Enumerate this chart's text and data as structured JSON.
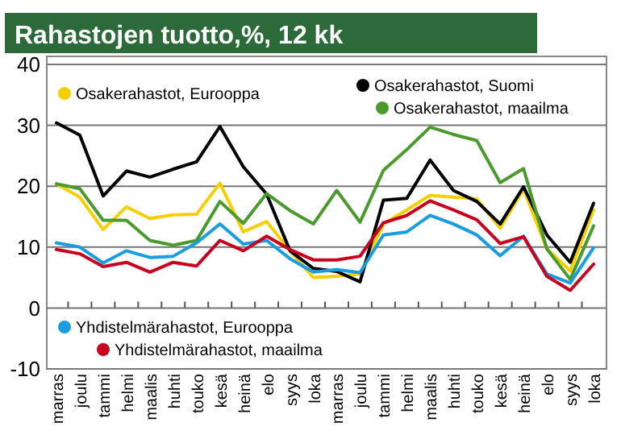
{
  "chart_data": {
    "type": "line",
    "title": "Rahastojen tuotto,%, 12 kk",
    "categories": [
      "marras",
      "joulu",
      "tammi",
      "helmi",
      "maalis",
      "huhti",
      "touko",
      "kesä",
      "heinä",
      "elo",
      "syys",
      "loka",
      "marras",
      "joulu",
      "tammi",
      "helmi",
      "maalis",
      "huhti",
      "touko",
      "kesä",
      "heinä",
      "elo",
      "syys",
      "loka"
    ],
    "series": [
      {
        "name": "Osakerahastot, Eurooppa",
        "color": "#f5cf00",
        "values": [
          20.4,
          18.2,
          12.9,
          16.6,
          14.7,
          15.3,
          15.4,
          20.5,
          12.5,
          14.2,
          9.4,
          5,
          5.2,
          5.6,
          13.8,
          16.1,
          18.5,
          18.2,
          17.9,
          13.1,
          19.5,
          9.7,
          6.1,
          16.1
        ]
      },
      {
        "name": "Osakerahastot, Suomi",
        "color": "#000000",
        "values": [
          30.4,
          28.4,
          18.4,
          22.5,
          21.5,
          22.8,
          24,
          29.8,
          23.2,
          18.7,
          9.4,
          6.5,
          6,
          4.3,
          17.7,
          18,
          24.3,
          19.3,
          17.5,
          13.8,
          19.9,
          12,
          7.5,
          17.2
        ]
      },
      {
        "name": "Osakerahastot, maailma",
        "color": "#4a9a2e",
        "values": [
          20.4,
          19.6,
          14.4,
          14.4,
          11.1,
          10.3,
          11.1,
          17.5,
          13.9,
          18.8,
          16,
          13.8,
          19.3,
          14.1,
          22.6,
          26,
          29.7,
          28.5,
          27.5,
          20.6,
          22.9,
          9.7,
          4.7,
          13.5
        ]
      },
      {
        "name": "Yhdistelmärahastot, Eurooppa",
        "color": "#1a9de0",
        "values": [
          10.7,
          10,
          7.4,
          9.4,
          8.3,
          8.5,
          10.7,
          13.8,
          10.5,
          11.1,
          8.1,
          5.9,
          6.3,
          5.8,
          12,
          12.5,
          15.2,
          13.8,
          12,
          8.6,
          11.8,
          5.6,
          4.1,
          9.9
        ]
      },
      {
        "name": "Yhdistelmärahastot, maailma",
        "color": "#c8001e",
        "values": [
          9.6,
          8.9,
          6.8,
          7.5,
          5.9,
          7.5,
          6.9,
          11.1,
          9.4,
          11.8,
          9.6,
          7.9,
          7.9,
          8.5,
          14,
          15.2,
          17.6,
          16.1,
          14.5,
          10.6,
          11.7,
          5.2,
          2.9,
          7.2
        ]
      }
    ],
    "ylim": [
      -10,
      40
    ],
    "yticks": [
      -10,
      0,
      10,
      20,
      30,
      40
    ],
    "grid": "y",
    "legend": "bottom left",
    "marker": "none",
    "line_style": "solid"
  }
}
